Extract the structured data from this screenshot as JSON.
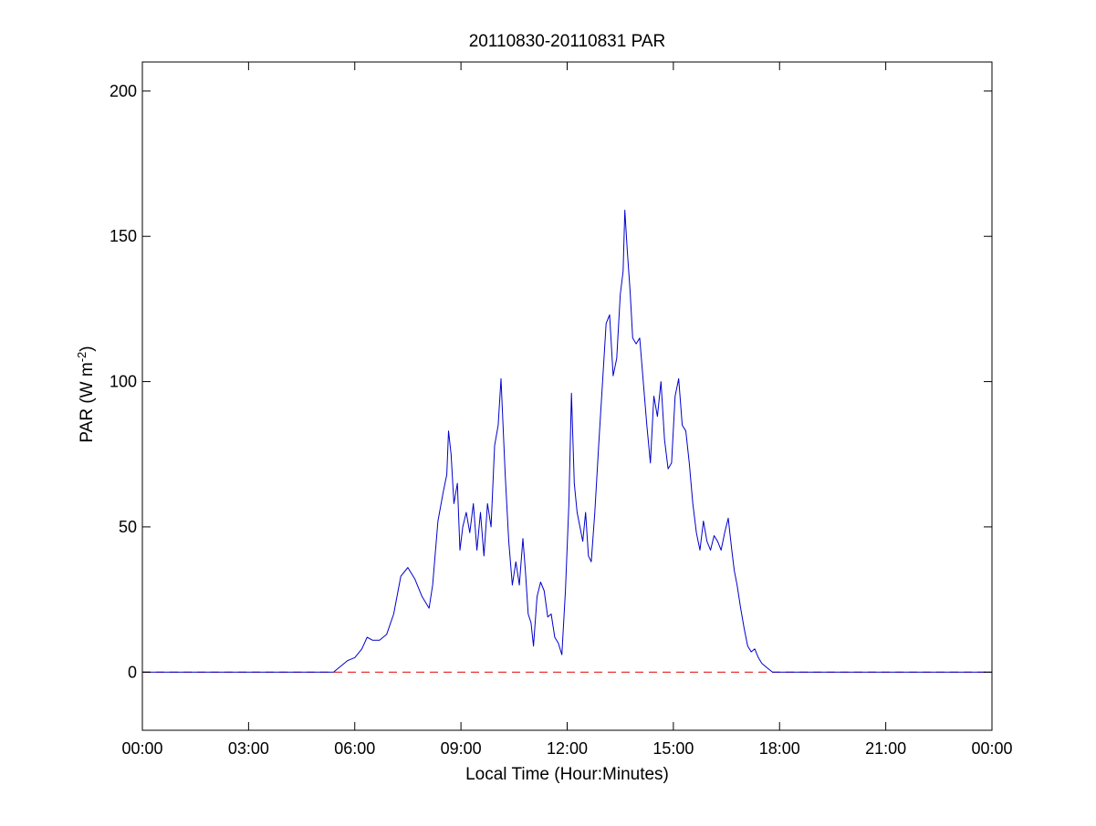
{
  "chart_data": {
    "type": "line",
    "title": "20110830-20110831 PAR",
    "xlabel": "Local Time (Hour:Minutes)",
    "ylabel": "PAR (W m",
    "ylabel_superscript": "-2",
    "ylabel_suffix": ")",
    "xlim": [
      0,
      24
    ],
    "ylim": [
      -20,
      210
    ],
    "x_tick_values": [
      0,
      3,
      6,
      9,
      12,
      15,
      18,
      21,
      24
    ],
    "x_tick_labels": [
      "00:00",
      "03:00",
      "06:00",
      "09:00",
      "12:00",
      "15:00",
      "18:00",
      "21:00",
      "00:00"
    ],
    "y_tick_values": [
      0,
      50,
      100,
      150,
      200
    ],
    "y_tick_labels": [
      "0",
      "50",
      "100",
      "150",
      "200"
    ],
    "grid": false,
    "colors": {
      "series": "#0000cc",
      "reference": "#e00000",
      "axes": "#000000"
    },
    "series": [
      {
        "line_style": "solid",
        "x": [
          0,
          5.4,
          5.6,
          5.8,
          6.0,
          6.2,
          6.35,
          6.5,
          6.7,
          6.9,
          7.1,
          7.3,
          7.5,
          7.7,
          7.9,
          8.1,
          8.2,
          8.35,
          8.5,
          8.6,
          8.65,
          8.72,
          8.8,
          8.9,
          8.97,
          9.05,
          9.15,
          9.25,
          9.35,
          9.45,
          9.55,
          9.65,
          9.75,
          9.85,
          9.95,
          10.05,
          10.13,
          10.25,
          10.35,
          10.45,
          10.55,
          10.65,
          10.75,
          10.82,
          10.9,
          10.98,
          11.05,
          11.15,
          11.25,
          11.35,
          11.45,
          11.55,
          11.65,
          11.75,
          11.85,
          11.95,
          12.05,
          12.12,
          12.2,
          12.28,
          12.36,
          12.44,
          12.52,
          12.6,
          12.68,
          12.78,
          12.9,
          13.0,
          13.1,
          13.2,
          13.3,
          13.4,
          13.5,
          13.58,
          13.63,
          13.7,
          13.78,
          13.85,
          13.95,
          14.05,
          14.15,
          14.25,
          14.35,
          14.45,
          14.55,
          14.65,
          14.75,
          14.85,
          14.95,
          15.05,
          15.15,
          15.25,
          15.35,
          15.45,
          15.55,
          15.65,
          15.75,
          15.85,
          15.95,
          16.05,
          16.15,
          16.25,
          16.35,
          16.45,
          16.55,
          16.65,
          16.72,
          16.8,
          16.9,
          17.0,
          17.1,
          17.2,
          17.3,
          17.4,
          17.5,
          17.6,
          17.7,
          17.8,
          17.9,
          18.0,
          18.1,
          18.2,
          18.35,
          18.5,
          18.7,
          19.0,
          20.0,
          24.0
        ],
        "y": [
          0,
          0,
          2,
          4,
          5,
          8,
          12,
          11,
          11,
          13,
          20,
          33,
          36,
          32,
          26,
          22,
          30,
          52,
          62,
          68,
          83,
          75,
          58,
          65,
          42,
          50,
          55,
          48,
          58,
          42,
          55,
          40,
          58,
          50,
          78,
          85,
          101,
          68,
          45,
          30,
          38,
          30,
          46,
          35,
          20,
          17,
          9,
          26,
          31,
          28,
          19,
          20,
          12,
          10,
          6,
          28,
          58,
          96,
          65,
          55,
          50,
          45,
          55,
          40,
          38,
          55,
          80,
          100,
          120,
          123,
          102,
          108,
          130,
          138,
          159,
          145,
          131,
          115,
          113,
          115,
          100,
          85,
          72,
          95,
          88,
          100,
          80,
          70,
          72,
          95,
          101,
          85,
          83,
          72,
          58,
          48,
          42,
          52,
          45,
          42,
          47,
          45,
          42,
          48,
          53,
          42,
          35,
          30,
          22,
          15,
          9,
          7,
          8,
          5,
          3,
          2,
          1,
          0,
          0,
          0,
          0,
          0,
          0,
          0,
          0,
          0,
          0,
          0
        ]
      },
      {
        "line_style": "dashed",
        "x": [
          0,
          24
        ],
        "y": [
          0,
          0
        ]
      }
    ]
  }
}
